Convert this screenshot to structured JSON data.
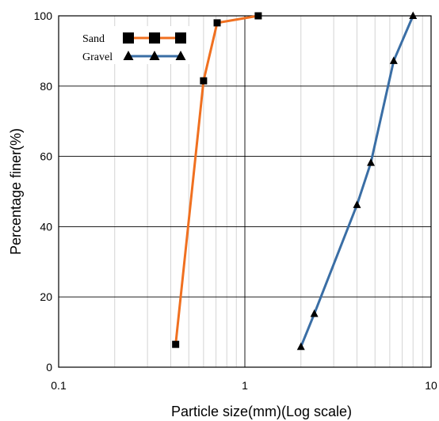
{
  "chart_data": {
    "type": "line",
    "title": "",
    "xlabel": "Particle size(mm)(Log scale)",
    "ylabel": "Percentage finer(%)",
    "xscale": "log",
    "xlim": [
      0.1,
      10
    ],
    "ylim": [
      0,
      100
    ],
    "x_ticks": [
      "0.1",
      "1",
      "10"
    ],
    "y_ticks": [
      "0",
      "20",
      "40",
      "60",
      "80",
      "100"
    ],
    "grid": "major horizontal, minor vertical (log)",
    "legend_position": "top-left",
    "series": [
      {
        "name": "Sand",
        "color": "#f07020",
        "marker": "square",
        "x": [
          0.425,
          0.6,
          0.71,
          1.18
        ],
        "y": [
          6.5,
          81.5,
          98,
          100
        ]
      },
      {
        "name": "Gravel",
        "color": "#3a6ea5",
        "marker": "triangle",
        "x": [
          2.0,
          2.36,
          4.0,
          4.75,
          6.3,
          8.0
        ],
        "y": [
          5.8,
          15.2,
          46.2,
          58.2,
          87.2,
          100
        ]
      }
    ]
  }
}
